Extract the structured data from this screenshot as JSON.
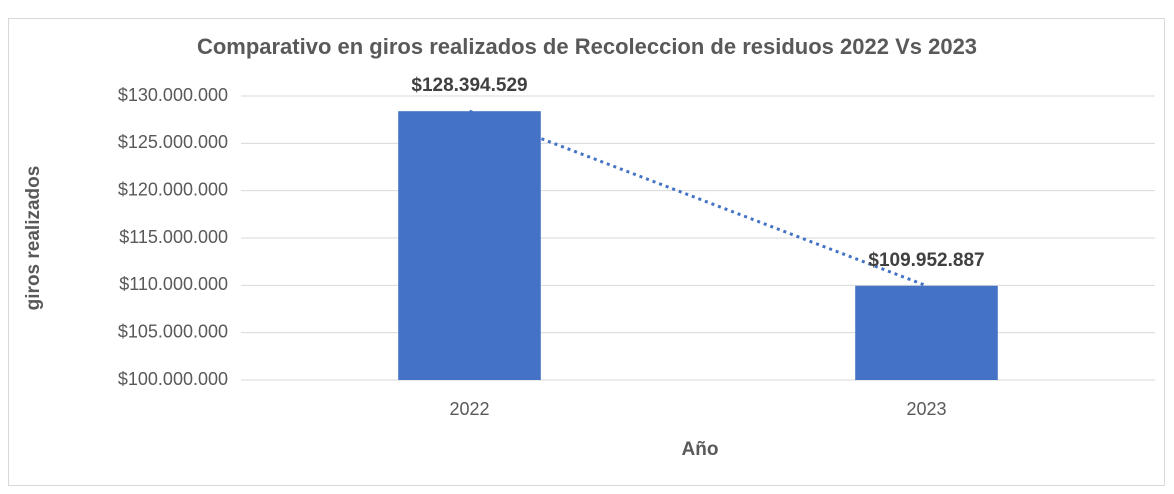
{
  "chart_data": {
    "type": "bar",
    "title": "Comparativo en giros realizados de Recoleccion de residuos  2022 Vs 2023",
    "x_label": "Año",
    "y_label": "giros realizados",
    "categories": [
      "2022",
      "2023"
    ],
    "values": [
      128394529,
      109952887
    ],
    "value_labels": [
      "$128.394.529",
      "$109.952.887"
    ],
    "color": "#4472c4",
    "ylim": [
      100000000,
      130000000
    ],
    "yticks": [
      {
        "value": 100000000,
        "label": "$100.000.000"
      },
      {
        "value": 105000000,
        "label": "$105.000.000"
      },
      {
        "value": 110000000,
        "label": "$110.000.000"
      },
      {
        "value": 115000000,
        "label": "$115.000.000"
      },
      {
        "value": 120000000,
        "label": "$120.000.000"
      },
      {
        "value": 125000000,
        "label": "$125.000.000"
      },
      {
        "value": 130000000,
        "label": "$130.000.000"
      }
    ],
    "grid": true,
    "trendline": true
  }
}
